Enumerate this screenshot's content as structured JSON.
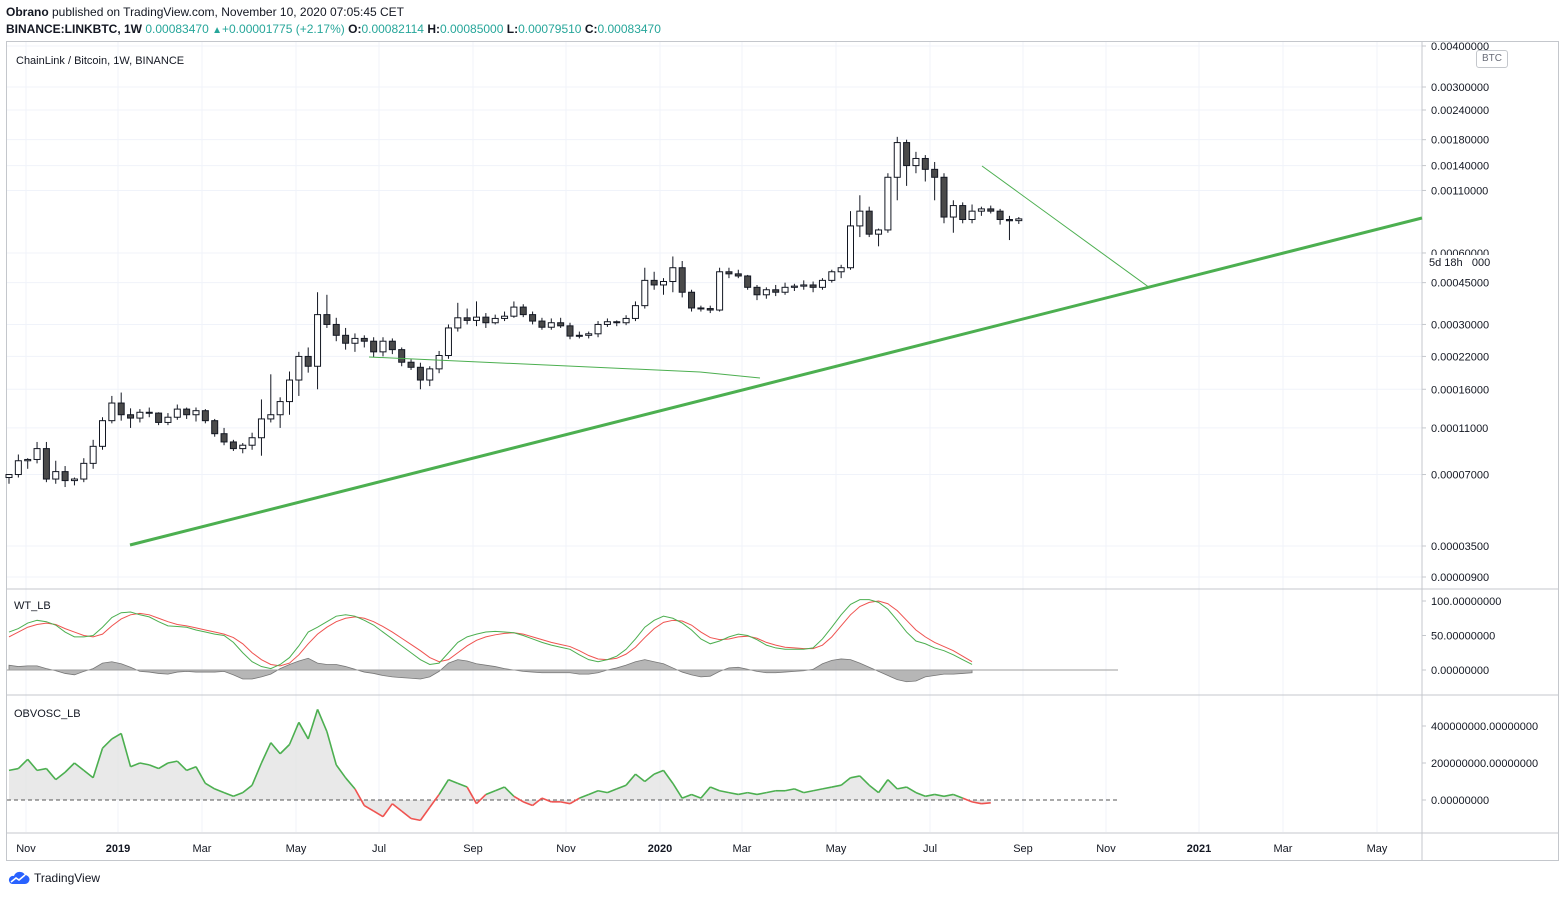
{
  "header": {
    "publisher": "Obrano",
    "published_text": " published on TradingView.com, November 10, 2020 07:05:45 CET",
    "symbol": "BINANCE:LINKBTC, 1W",
    "last": "0.00083470",
    "change": "+0.00001775 (+2.17%)",
    "o_label": "O:",
    "o_value": "0.00082114",
    "h_label": "H:",
    "h_value": "0.00085000",
    "l_label": "L:",
    "l_value": "0.00079510",
    "c_label": "C:",
    "c_value": "0.00083470"
  },
  "chart_title": "ChainLink / Bitcoin, 1W, BINANCE",
  "currency_badge": "BTC",
  "countdown": "5d 18h",
  "countdown_tail": "000",
  "colors": {
    "trend": "#4caf50",
    "candle_up_fill": "#ffffff",
    "candle_down_fill": "#4a4a4a",
    "wt1": "#4caf50",
    "wt2": "#ef5350",
    "wt_hist": "#9e9e9e",
    "obv_pos": "#4caf50",
    "obv_neg": "#ef5350"
  },
  "footer": {
    "brand": "TradingView"
  },
  "chart_data": [
    {
      "type": "candlestick",
      "title": "ChainLink / Bitcoin, 1W, BINANCE",
      "scale": "log",
      "price_axis_labels": [
        "0.00400000",
        "0.00300000",
        "0.00240000",
        "0.00180000",
        "0.00140000",
        "0.00110000",
        "0.00060000",
        "0.00045000",
        "0.00030000",
        "0.00022000",
        "0.00016000",
        "0.00011000",
        "0.00007000",
        "0.00003500",
        "0.00000900"
      ],
      "time_axis_labels": [
        "Nov",
        "2019",
        "Mar",
        "May",
        "Jul",
        "Sep",
        "Nov",
        "2020",
        "Mar",
        "May",
        "Jul",
        "Sep",
        "Nov",
        "2021",
        "Mar",
        "May"
      ],
      "candles": [
        [
          6.8e-05,
          7e-05,
          6.4e-05,
          7e-05
        ],
        [
          7e-05,
          8.5e-05,
          6.8e-05,
          8e-05
        ],
        [
          8e-05,
          8.2e-05,
          7.4e-05,
          8.1e-05
        ],
        [
          8.1e-05,
          9.6e-05,
          7.8e-05,
          9e-05
        ],
        [
          9e-05,
          9.6e-05,
          6.5e-05,
          6.7e-05
        ],
        [
          6.7e-05,
          8e-05,
          6.4e-05,
          7.2e-05
        ],
        [
          7.2e-05,
          7.6e-05,
          6.2e-05,
          6.6e-05
        ],
        [
          6.6e-05,
          6.8e-05,
          6.3e-05,
          6.7e-05
        ],
        [
          6.7e-05,
          8.2e-05,
          6.5e-05,
          7.8e-05
        ],
        [
          7.8e-05,
          9.8e-05,
          7.4e-05,
          9.2e-05
        ],
        [
          9.2e-05,
          0.000122,
          8.9e-05,
          0.000118
        ],
        [
          0.000118,
          0.00015,
          0.000115,
          0.00014
        ],
        [
          0.00014,
          0.000155,
          0.000118,
          0.000125
        ],
        [
          0.000125,
          0.000133,
          0.00011,
          0.000121
        ],
        [
          0.000121,
          0.000132,
          0.000116,
          0.000128
        ],
        [
          0.000128,
          0.000134,
          0.000122,
          0.000127
        ],
        [
          0.000127,
          0.000128,
          0.000113,
          0.000116
        ],
        [
          0.000116,
          0.000127,
          0.000113,
          0.000122
        ],
        [
          0.000122,
          0.000138,
          0.000119,
          0.000132
        ],
        [
          0.000132,
          0.000134,
          0.00012,
          0.000125
        ],
        [
          0.000125,
          0.000134,
          0.000117,
          0.00013
        ],
        [
          0.00013,
          0.000132,
          0.000115,
          0.000118
        ],
        [
          0.000118,
          0.00012,
          0.000101,
          0.000104
        ],
        [
          0.000104,
          0.00011,
          9.3e-05,
          9.6e-05
        ],
        [
          9.6e-05,
          9.8e-05,
          8.8e-05,
          9e-05
        ],
        [
          9e-05,
          9.5e-05,
          8.6e-05,
          9.3e-05
        ],
        [
          9.3e-05,
          0.000105,
          8.9e-05,
          0.0001
        ],
        [
          0.0001,
          0.000145,
          8.4e-05,
          0.00012
        ],
        [
          0.00012,
          0.000185,
          0.000116,
          0.000125
        ],
        [
          0.000125,
          0.000148,
          0.00011,
          0.000142
        ],
        [
          0.000142,
          0.00019,
          0.000125,
          0.000175
        ],
        [
          0.000175,
          0.00023,
          0.00015,
          0.00022
        ],
        [
          0.00022,
          0.00024,
          0.000188,
          0.0002
        ],
        [
          0.0002,
          0.00041,
          0.00016,
          0.00033
        ],
        [
          0.00033,
          0.0004,
          0.00029,
          0.0003
        ],
        [
          0.0003,
          0.00032,
          0.000255,
          0.00027
        ],
        [
          0.00027,
          0.00029,
          0.000235,
          0.00025
        ],
        [
          0.00025,
          0.000275,
          0.00023,
          0.000262
        ],
        [
          0.000262,
          0.00027,
          0.00024,
          0.000255
        ],
        [
          0.000255,
          0.000265,
          0.000218,
          0.00023
        ],
        [
          0.00023,
          0.000265,
          0.00022,
          0.000255
        ],
        [
          0.000255,
          0.000262,
          0.000225,
          0.000235
        ],
        [
          0.000235,
          0.00024,
          0.0002,
          0.000208
        ],
        [
          0.000208,
          0.000214,
          0.000193,
          0.000198
        ],
        [
          0.000198,
          0.000207,
          0.00016,
          0.000175
        ],
        [
          0.000175,
          0.0002,
          0.000165,
          0.000195
        ],
        [
          0.000195,
          0.000232,
          0.000187,
          0.000222
        ],
        [
          0.000222,
          0.0003,
          0.000215,
          0.00029
        ],
        [
          0.00029,
          0.00037,
          0.00028,
          0.00032
        ],
        [
          0.00032,
          0.00035,
          0.0003,
          0.000312
        ],
        [
          0.000312,
          0.000375,
          0.000295,
          0.000322
        ],
        [
          0.000322,
          0.000335,
          0.00029,
          0.000305
        ],
        [
          0.000305,
          0.00033,
          0.0003,
          0.000318
        ],
        [
          0.000318,
          0.00034,
          0.00031,
          0.000325
        ],
        [
          0.000325,
          0.000375,
          0.00032,
          0.000355
        ],
        [
          0.000355,
          0.000365,
          0.000322,
          0.00033
        ],
        [
          0.00033,
          0.00034,
          0.0003,
          0.00031
        ],
        [
          0.00031,
          0.00032,
          0.000285,
          0.000292
        ],
        [
          0.000292,
          0.000318,
          0.000285,
          0.000305
        ],
        [
          0.000305,
          0.00032,
          0.00029,
          0.000296
        ],
        [
          0.000296,
          0.000305,
          0.00026,
          0.000268
        ],
        [
          0.000268,
          0.00028,
          0.000262,
          0.00027
        ],
        [
          0.00027,
          0.00028,
          0.000262,
          0.000274
        ],
        [
          0.000274,
          0.00031,
          0.000265,
          0.0003
        ],
        [
          0.0003,
          0.000318,
          0.000293,
          0.000308
        ],
        [
          0.000308,
          0.000312,
          0.000295,
          0.000305
        ],
        [
          0.000305,
          0.000328,
          0.000298,
          0.000318
        ],
        [
          0.000318,
          0.000375,
          0.00031,
          0.00036
        ],
        [
          0.00036,
          0.00052,
          0.00035,
          0.00046
        ],
        [
          0.00046,
          0.0005,
          0.00042,
          0.00044
        ],
        [
          0.00044,
          0.00047,
          0.0004,
          0.000455
        ],
        [
          0.000455,
          0.00058,
          0.00041,
          0.00052
        ],
        [
          0.00052,
          0.000555,
          0.00039,
          0.00041
        ],
        [
          0.00041,
          0.00042,
          0.00034,
          0.000352
        ],
        [
          0.000352,
          0.00036,
          0.00034,
          0.00035
        ],
        [
          0.00035,
          0.00036,
          0.000335,
          0.000345
        ],
        [
          0.000345,
          0.00052,
          0.00034,
          0.0005
        ],
        [
          0.0005,
          0.00052,
          0.00047,
          0.00049
        ],
        [
          0.00049,
          0.00051,
          0.00047,
          0.00048
        ],
        [
          0.00048,
          0.000485,
          0.00042,
          0.00043
        ],
        [
          0.00043,
          0.00044,
          0.00038,
          0.0004
        ],
        [
          0.0004,
          0.00043,
          0.000385,
          0.00042
        ],
        [
          0.00042,
          0.00044,
          0.000395,
          0.00041
        ],
        [
          0.00041,
          0.00045,
          0.0004,
          0.00043
        ],
        [
          0.00043,
          0.000445,
          0.000415,
          0.000435
        ],
        [
          0.000435,
          0.00046,
          0.00042,
          0.00044
        ],
        [
          0.00044,
          0.000455,
          0.00041,
          0.00043
        ],
        [
          0.00043,
          0.00047,
          0.00042,
          0.00046
        ],
        [
          0.00046,
          0.00051,
          0.00045,
          0.0005
        ],
        [
          0.0005,
          0.000535,
          0.00047,
          0.00052
        ],
        [
          0.00052,
          0.0009,
          0.00051,
          0.00078
        ],
        [
          0.00078,
          0.00105,
          0.0007,
          0.0009
        ],
        [
          0.0009,
          0.00094,
          0.0007,
          0.00072
        ],
        [
          0.00072,
          0.00076,
          0.00064,
          0.00075
        ],
        [
          0.00075,
          0.0013,
          0.00073,
          0.00125
        ],
        [
          0.00125,
          0.00185,
          0.001,
          0.00175
        ],
        [
          0.00175,
          0.0018,
          0.00115,
          0.0014
        ],
        [
          0.0014,
          0.0016,
          0.0013,
          0.0015
        ],
        [
          0.0015,
          0.00155,
          0.0012,
          0.00135
        ],
        [
          0.00135,
          0.00145,
          0.001,
          0.00125
        ],
        [
          0.00125,
          0.0013,
          0.0008,
          0.00085
        ],
        [
          0.00085,
          0.001,
          0.00073,
          0.00095
        ],
        [
          0.00095,
          0.00098,
          0.0008,
          0.00083
        ],
        [
          0.00083,
          0.00096,
          0.0008,
          0.0009
        ],
        [
          0.0009,
          0.00094,
          0.00086,
          0.00092
        ],
        [
          0.00092,
          0.00095,
          0.00088,
          0.0009
        ],
        [
          0.0009,
          0.00092,
          0.00079,
          0.00083
        ],
        [
          0.00083,
          0.00086,
          0.00068,
          0.00082
        ],
        [
          0.000821,
          0.00085,
          0.000795,
          0.000835
        ]
      ],
      "trendlines": [
        "rising support",
        "descending resistance 2019",
        "descending resistance 2020"
      ]
    },
    {
      "type": "line",
      "title": "WT_LB",
      "y_axis_labels": [
        "100.00000000",
        "50.00000000",
        "0.00000000"
      ],
      "series": [
        {
          "name": "wt1",
          "values": [
            55,
            60,
            68,
            72,
            70,
            65,
            55,
            48,
            48,
            50,
            62,
            76,
            83,
            84,
            80,
            77,
            70,
            64,
            63,
            62,
            58,
            55,
            52,
            50,
            40,
            25,
            12,
            5,
            2,
            8,
            18,
            35,
            55,
            62,
            70,
            78,
            80,
            78,
            72,
            65,
            55,
            45,
            35,
            25,
            15,
            8,
            10,
            25,
            40,
            48,
            52,
            55,
            56,
            55,
            54,
            50,
            45,
            40,
            36,
            33,
            30,
            22,
            15,
            12,
            15,
            20,
            30,
            45,
            62,
            72,
            78,
            75,
            68,
            58,
            45,
            38,
            42,
            48,
            52,
            50,
            44,
            36,
            32,
            30,
            30,
            30,
            32,
            45,
            62,
            80,
            95,
            102,
            102,
            98,
            88,
            72,
            55,
            42,
            38,
            32,
            28,
            22,
            15,
            8
          ]
        },
        {
          "name": "wt2",
          "values": [
            48,
            55,
            62,
            66,
            68,
            66,
            60,
            55,
            50,
            48,
            52,
            64,
            74,
            80,
            82,
            80,
            75,
            70,
            66,
            64,
            61,
            58,
            55,
            52,
            47,
            38,
            25,
            15,
            8,
            6,
            10,
            22,
            38,
            52,
            62,
            70,
            75,
            77,
            75,
            70,
            63,
            55,
            46,
            37,
            28,
            18,
            12,
            15,
            25,
            35,
            43,
            48,
            51,
            53,
            54,
            52,
            48,
            44,
            40,
            37,
            34,
            28,
            21,
            16,
            15,
            17,
            23,
            33,
            47,
            60,
            69,
            72,
            71,
            65,
            55,
            47,
            44,
            45,
            48,
            49,
            46,
            40,
            36,
            33,
            32,
            31,
            31,
            36,
            48,
            64,
            80,
            92,
            98,
            100,
            96,
            86,
            72,
            58,
            48,
            40,
            34,
            28,
            20,
            12
          ]
        },
        {
          "name": "histogram",
          "values": [
            7,
            5,
            6,
            6,
            2,
            -1,
            -5,
            -7,
            -2,
            2,
            10,
            12,
            9,
            4,
            -2,
            -3,
            -5,
            -6,
            -3,
            -2,
            -3,
            -3,
            -3,
            -2,
            -7,
            -13,
            -13,
            -10,
            -6,
            2,
            8,
            13,
            17,
            10,
            8,
            8,
            5,
            1,
            -3,
            -5,
            -8,
            -10,
            -11,
            -12,
            -13,
            -10,
            -2,
            10,
            15,
            13,
            9,
            7,
            5,
            2,
            0,
            -2,
            -3,
            -4,
            -4,
            -4,
            -4,
            -6,
            -6,
            -4,
            0,
            3,
            7,
            12,
            15,
            12,
            9,
            3,
            -3,
            -7,
            -10,
            -9,
            -2,
            3,
            4,
            1,
            -2,
            -4,
            -4,
            -3,
            -2,
            -1,
            1,
            9,
            14,
            16,
            15,
            10,
            4,
            -2,
            -8,
            -14,
            -17,
            -16,
            -10,
            -8,
            -6,
            -6,
            -5,
            -4
          ]
        }
      ]
    },
    {
      "type": "area",
      "title": "OBVOSC_LB",
      "y_axis_labels": [
        "400000000.00000000",
        "200000000.00000000",
        "0.00000000"
      ],
      "values": [
        160,
        170,
        220,
        160,
        170,
        110,
        150,
        200,
        160,
        120,
        280,
        330,
        360,
        180,
        200,
        190,
        170,
        200,
        210,
        160,
        180,
        90,
        60,
        40,
        20,
        40,
        80,
        200,
        310,
        250,
        300,
        420,
        330,
        490,
        370,
        190,
        120,
        60,
        -30,
        -60,
        -90,
        -20,
        -60,
        -100,
        -110,
        -40,
        30,
        110,
        90,
        70,
        -20,
        30,
        50,
        70,
        20,
        -10,
        -30,
        10,
        -10,
        -10,
        -20,
        10,
        30,
        50,
        40,
        60,
        80,
        140,
        100,
        140,
        160,
        90,
        10,
        30,
        10,
        70,
        50,
        40,
        30,
        40,
        30,
        40,
        50,
        50,
        60,
        40,
        50,
        60,
        70,
        80,
        120,
        130,
        80,
        40,
        110,
        60,
        70,
        40,
        20,
        30,
        20,
        30,
        10,
        -10,
        -20,
        -15
      ]
    }
  ]
}
